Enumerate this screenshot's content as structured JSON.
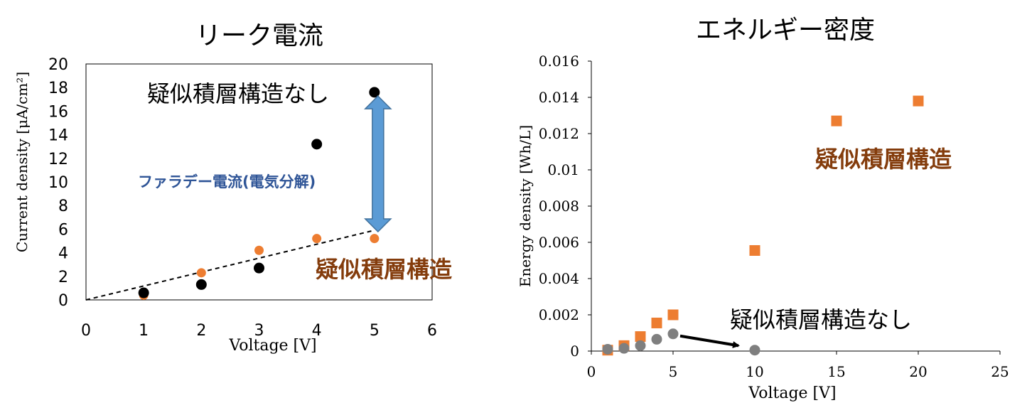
{
  "chart_data": [
    {
      "type": "scatter",
      "title": "リーク電流",
      "xlabel": "Voltage [V]",
      "ylabel": "Current density [μA/cm²]",
      "xlim": [
        0,
        6
      ],
      "ylim": [
        0,
        20
      ],
      "x_ticks": [
        "0",
        "1",
        "2",
        "3",
        "4",
        "5",
        "6"
      ],
      "y_ticks": [
        "0",
        "2",
        "4",
        "6",
        "8",
        "10",
        "12",
        "14",
        "16",
        "18",
        "20"
      ],
      "grid": false,
      "series": [
        {
          "name": "疑似積層構造なし",
          "color": "#000000",
          "marker": "circle",
          "x": [
            1,
            2,
            3,
            4,
            5
          ],
          "y": [
            0.6,
            1.3,
            2.7,
            13.2,
            17.6
          ]
        },
        {
          "name": "疑似積層構造",
          "color": "#ed7d31",
          "marker": "circle",
          "x": [
            1,
            2,
            3,
            4,
            5
          ],
          "y": [
            0.4,
            2.3,
            4.2,
            5.2,
            5.2
          ]
        }
      ],
      "trendline": {
        "x": [
          0,
          5
        ],
        "y": [
          0,
          5.9
        ],
        "style": "dashed",
        "color": "#000000"
      },
      "annotations": {
        "series_label_black": "疑似積層構造なし",
        "series_label_orange": "疑似積層構造",
        "gap_label": "ファラデー電流(電気分解)",
        "gap_arrow": {
          "x": 5,
          "y_from": 5.9,
          "y_to": 16.8,
          "color": "#5b9bd5"
        }
      }
    },
    {
      "type": "scatter",
      "title": "エネルギー密度",
      "xlabel": "Voltage [V]",
      "ylabel": "Energy density [Wh/L]",
      "xlim": [
        0,
        25
      ],
      "ylim": [
        0,
        0.016
      ],
      "x_ticks": [
        "0",
        "5",
        "10",
        "15",
        "20",
        "25"
      ],
      "y_ticks": [
        "0",
        "0.002",
        "0.004",
        "0.006",
        "0.008",
        "0.01",
        "0.012",
        "0.014",
        "0.016"
      ],
      "grid": false,
      "series": [
        {
          "name": "疑似積層構造",
          "color": "#ed7d31",
          "marker": "square",
          "x": [
            1,
            2,
            3,
            4,
            5,
            10,
            15,
            20
          ],
          "y": [
            5e-05,
            0.0003,
            0.0008,
            0.00155,
            0.002,
            0.00555,
            0.0127,
            0.0138
          ]
        },
        {
          "name": "疑似積層構造なし",
          "color": "#7f7f7f",
          "marker": "circle",
          "x": [
            1,
            2,
            3,
            4,
            5,
            10
          ],
          "y": [
            0.0001,
            0.00015,
            0.0003,
            0.00065,
            0.00095,
            5e-05
          ]
        }
      ],
      "annotations": {
        "series_label_orange": "疑似積層構造",
        "series_label_gray": "疑似積層構造なし",
        "arrow": {
          "from": [
            5,
            0.00095
          ],
          "to": [
            9,
            0.0003
          ],
          "color": "#000000"
        }
      }
    }
  ]
}
